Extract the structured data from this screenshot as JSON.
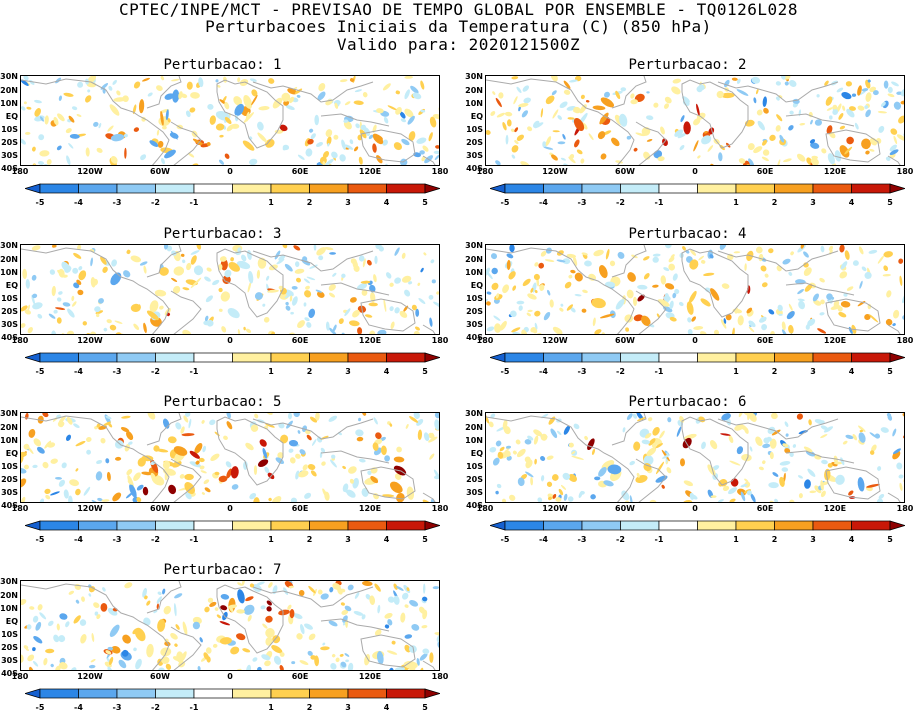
{
  "header": {
    "line1": "CPTEC/INPE/MCT - PREVISAO DE TEMPO GLOBAL POR ENSEMBLE - TQ0126L028",
    "line2": "Perturbacoes Iniciais da Temperatura (C) (850 hPa)",
    "line3": "Valido para: 2020121500Z"
  },
  "panels": [
    {
      "title": "Perturbacao: 1"
    },
    {
      "title": "Perturbacao: 2"
    },
    {
      "title": "Perturbacao: 3"
    },
    {
      "title": "Perturbacao: 4"
    },
    {
      "title": "Perturbacao: 5"
    },
    {
      "title": "Perturbacao: 6"
    },
    {
      "title": "Perturbacao: 7"
    }
  ],
  "axes": {
    "lat_labels": [
      "30N",
      "20N",
      "10N",
      "EQ",
      "10S",
      "20S",
      "30S",
      "40S"
    ],
    "lon_labels": [
      "180",
      "120W",
      "60W",
      "0",
      "60E",
      "120E",
      "180"
    ]
  },
  "colorbar": {
    "levels": [
      "-5",
      "-4",
      "-3",
      "-2",
      "-1",
      "1",
      "2",
      "3",
      "4",
      "5"
    ],
    "colors": [
      "#1560d0",
      "#2c86e6",
      "#5ba7ee",
      "#8fcaf4",
      "#c4ecf8",
      "#ffffff",
      "#fff0a0",
      "#ffd050",
      "#f7a020",
      "#ea5a10",
      "#c81808",
      "#8e0000"
    ]
  }
}
